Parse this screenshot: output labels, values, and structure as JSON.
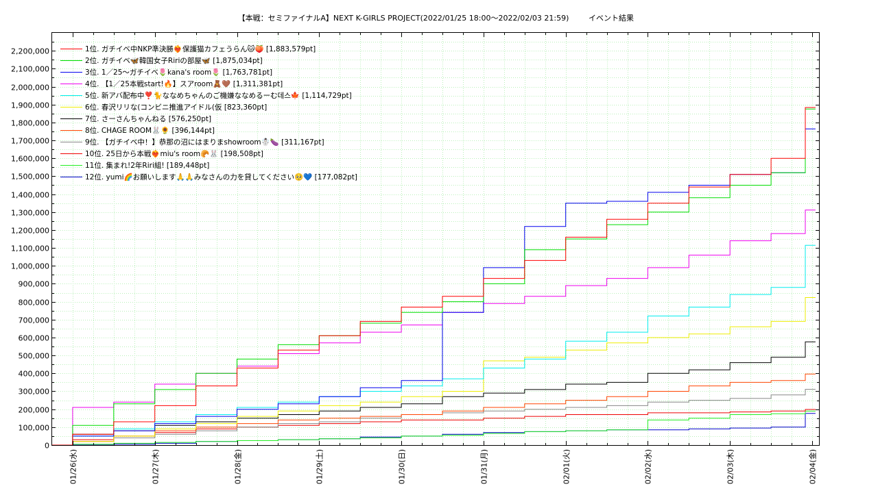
{
  "title": "【本戦：セミファイナルA】NEXT K-GIRLS PROJECT(2022/01/25 18:00～2022/02/03 21:59)",
  "subtitle": "イベント結果",
  "chart_data": {
    "type": "line",
    "step": true,
    "xlim": [
      "2022-01-25 18:00",
      "2022-02-04 02:00"
    ],
    "ylim": [
      0,
      2300000
    ],
    "grid": true,
    "legend_position": "top-left",
    "x_ticks": [
      "01/26(水)",
      "01/27(木)",
      "01/28(金)",
      "01/29(土)",
      "01/30(日)",
      "01/31(月)",
      "02/01(火)",
      "02/02(水)",
      "02/03(木)",
      "02/04(金)"
    ],
    "y_ticks": [
      "0",
      "100,000",
      "200,000",
      "300,000",
      "400,000",
      "500,000",
      "600,000",
      "700,000",
      "800,000",
      "900,000",
      "1,000,000",
      "1,100,000",
      "1,200,000",
      "1,300,000",
      "1,400,000",
      "1,500,000",
      "1,600,000",
      "1,700,000",
      "1,800,000",
      "1,900,000",
      "2,000,000",
      "2,100,000",
      "2,200,000"
    ],
    "series": [
      {
        "name": "1位. ガチイベ中NKP準決勝❤️‍🔥保護猫カフェうらん🐱🍑 [1,883,579pt]",
        "color": "#ff0000",
        "x": [
          "2022-01-25 18:00",
          "2022-01-26 00:00",
          "2022-01-26 12:00",
          "2022-01-27 00:00",
          "2022-01-27 12:00",
          "2022-01-28 00:00",
          "2022-01-28 12:00",
          "2022-01-29 00:00",
          "2022-01-29 12:00",
          "2022-01-30 00:00",
          "2022-01-30 12:00",
          "2022-01-31 00:00",
          "2022-01-31 12:00",
          "2022-02-01 00:00",
          "2022-02-01 12:00",
          "2022-02-02 00:00",
          "2022-02-02 12:00",
          "2022-02-03 00:00",
          "2022-02-03 12:00",
          "2022-02-03 21:59"
        ],
        "y": [
          0,
          60000,
          130000,
          220000,
          330000,
          430000,
          530000,
          610000,
          690000,
          770000,
          830000,
          930000,
          1030000,
          1160000,
          1260000,
          1350000,
          1440000,
          1510000,
          1600000,
          1883579
        ]
      },
      {
        "name": "2位. ガチイベ🦋韓国女子Ririの部屋🦋 [1,875,034pt]",
        "color": "#00dd00",
        "x": [
          "2022-01-25 18:00",
          "2022-01-26 00:00",
          "2022-01-26 12:00",
          "2022-01-27 00:00",
          "2022-01-27 12:00",
          "2022-01-28 00:00",
          "2022-01-28 12:00",
          "2022-01-29 00:00",
          "2022-01-29 12:00",
          "2022-01-30 00:00",
          "2022-01-30 12:00",
          "2022-01-31 00:00",
          "2022-01-31 12:00",
          "2022-02-01 00:00",
          "2022-02-01 12:00",
          "2022-02-02 00:00",
          "2022-02-02 12:00",
          "2022-02-03 00:00",
          "2022-02-03 12:00",
          "2022-02-03 21:59"
        ],
        "y": [
          0,
          110000,
          230000,
          310000,
          400000,
          480000,
          560000,
          610000,
          680000,
          740000,
          800000,
          900000,
          1090000,
          1150000,
          1230000,
          1300000,
          1380000,
          1450000,
          1520000,
          1875034
        ]
      },
      {
        "name": "3位. 1／25〜ガチイベ🌷kana's room🌷 [1,763,781pt]",
        "color": "#0000ee",
        "x": [
          "2022-01-25 18:00",
          "2022-01-26 00:00",
          "2022-01-26 12:00",
          "2022-01-27 00:00",
          "2022-01-27 12:00",
          "2022-01-28 00:00",
          "2022-01-28 12:00",
          "2022-01-29 00:00",
          "2022-01-29 12:00",
          "2022-01-30 00:00",
          "2022-01-30 12:00",
          "2022-01-31 00:00",
          "2022-01-31 12:00",
          "2022-02-01 00:00",
          "2022-02-01 12:00",
          "2022-02-02 00:00",
          "2022-02-02 12:00",
          "2022-02-03 00:00",
          "2022-02-03 12:00",
          "2022-02-03 21:59"
        ],
        "y": [
          0,
          50000,
          80000,
          120000,
          160000,
          200000,
          230000,
          270000,
          320000,
          360000,
          740000,
          990000,
          1220000,
          1350000,
          1360000,
          1410000,
          1450000,
          1510000,
          1520000,
          1763781
        ]
      },
      {
        "name": "4位. 【1／25本戦start!🔥】スアroom🧸🤎 [1,311,381pt]",
        "color": "#ee00ee",
        "x": [
          "2022-01-25 18:00",
          "2022-01-26 00:00",
          "2022-01-26 12:00",
          "2022-01-27 00:00",
          "2022-01-27 12:00",
          "2022-01-28 00:00",
          "2022-01-28 12:00",
          "2022-01-29 00:00",
          "2022-01-29 12:00",
          "2022-01-30 00:00",
          "2022-01-30 12:00",
          "2022-01-31 00:00",
          "2022-01-31 12:00",
          "2022-02-01 00:00",
          "2022-02-01 12:00",
          "2022-02-02 00:00",
          "2022-02-02 12:00",
          "2022-02-03 00:00",
          "2022-02-03 12:00",
          "2022-02-03 21:59"
        ],
        "y": [
          0,
          210000,
          240000,
          340000,
          400000,
          440000,
          510000,
          570000,
          630000,
          670000,
          740000,
          790000,
          830000,
          890000,
          930000,
          990000,
          1060000,
          1140000,
          1180000,
          1311381
        ]
      },
      {
        "name": "5位. 新アバ配布中❣️🐈ななめちゃんのご機嫌ななめるーむ데스🍁 [1,114,729pt]",
        "color": "#00eeee",
        "x": [
          "2022-01-25 18:00",
          "2022-01-26 00:00",
          "2022-01-26 12:00",
          "2022-01-27 00:00",
          "2022-01-27 12:00",
          "2022-01-28 00:00",
          "2022-01-28 12:00",
          "2022-01-29 00:00",
          "2022-01-29 12:00",
          "2022-01-30 00:00",
          "2022-01-30 12:00",
          "2022-01-31 00:00",
          "2022-01-31 12:00",
          "2022-02-01 00:00",
          "2022-02-01 12:00",
          "2022-02-02 00:00",
          "2022-02-02 12:00",
          "2022-02-03 00:00",
          "2022-02-03 12:00",
          "2022-02-03 21:59"
        ],
        "y": [
          0,
          50000,
          90000,
          130000,
          170000,
          210000,
          240000,
          270000,
          300000,
          330000,
          370000,
          430000,
          480000,
          580000,
          630000,
          720000,
          770000,
          840000,
          880000,
          1114729
        ]
      },
      {
        "name": "6位. 春沢リリな(コンビニ推進アイドル(仮 [823,360pt]",
        "color": "#eeee00",
        "x": [
          "2022-01-25 18:00",
          "2022-01-26 00:00",
          "2022-01-26 12:00",
          "2022-01-27 00:00",
          "2022-01-27 12:00",
          "2022-01-28 00:00",
          "2022-01-28 12:00",
          "2022-01-29 00:00",
          "2022-01-29 12:00",
          "2022-01-30 00:00",
          "2022-01-30 12:00",
          "2022-01-31 00:00",
          "2022-01-31 12:00",
          "2022-02-01 00:00",
          "2022-02-01 12:00",
          "2022-02-02 00:00",
          "2022-02-02 12:00",
          "2022-02-03 00:00",
          "2022-02-03 12:00",
          "2022-02-03 21:59"
        ],
        "y": [
          0,
          20000,
          50000,
          90000,
          120000,
          160000,
          190000,
          220000,
          240000,
          270000,
          300000,
          470000,
          490000,
          530000,
          570000,
          600000,
          620000,
          660000,
          690000,
          823360
        ]
      },
      {
        "name": "7位. さーさんちゃんねる [576,250pt]",
        "color": "#000000",
        "x": [
          "2022-01-25 18:00",
          "2022-01-26 00:00",
          "2022-01-26 12:00",
          "2022-01-27 00:00",
          "2022-01-27 12:00",
          "2022-01-28 00:00",
          "2022-01-28 12:00",
          "2022-01-29 00:00",
          "2022-01-29 12:00",
          "2022-01-30 00:00",
          "2022-01-30 12:00",
          "2022-01-31 00:00",
          "2022-01-31 12:00",
          "2022-02-01 00:00",
          "2022-02-01 12:00",
          "2022-02-02 00:00",
          "2022-02-02 12:00",
          "2022-02-03 00:00",
          "2022-02-03 12:00",
          "2022-02-03 21:59"
        ],
        "y": [
          0,
          60000,
          80000,
          110000,
          130000,
          150000,
          170000,
          190000,
          210000,
          230000,
          270000,
          290000,
          310000,
          340000,
          350000,
          400000,
          420000,
          460000,
          490000,
          576250
        ]
      },
      {
        "name": "8位. CHAGE ROOM🐰🌻 [396,144pt]",
        "color": "#ff4400",
        "x": [
          "2022-01-25 18:00",
          "2022-01-26 00:00",
          "2022-01-26 12:00",
          "2022-01-27 00:00",
          "2022-01-27 12:00",
          "2022-01-28 00:00",
          "2022-01-28 12:00",
          "2022-01-29 00:00",
          "2022-01-29 12:00",
          "2022-01-30 00:00",
          "2022-01-30 12:00",
          "2022-01-31 00:00",
          "2022-01-31 12:00",
          "2022-02-01 00:00",
          "2022-02-01 12:00",
          "2022-02-02 00:00",
          "2022-02-02 12:00",
          "2022-02-03 00:00",
          "2022-02-03 12:00",
          "2022-02-03 21:59"
        ],
        "y": [
          0,
          20000,
          50000,
          80000,
          100000,
          120000,
          140000,
          150000,
          160000,
          170000,
          190000,
          210000,
          230000,
          250000,
          270000,
          300000,
          330000,
          350000,
          360000,
          396144
        ]
      },
      {
        "name": "9位. 【ガチイベ中！】恭那の沼にはまりまshowroom☃️🍆 [311,167pt]",
        "color": "#888888",
        "x": [
          "2022-01-25 18:00",
          "2022-01-26 00:00",
          "2022-01-26 12:00",
          "2022-01-27 00:00",
          "2022-01-27 12:00",
          "2022-01-28 00:00",
          "2022-01-28 12:00",
          "2022-01-29 00:00",
          "2022-01-29 12:00",
          "2022-01-30 00:00",
          "2022-01-30 12:00",
          "2022-01-31 00:00",
          "2022-01-31 12:00",
          "2022-02-01 00:00",
          "2022-02-01 12:00",
          "2022-02-02 00:00",
          "2022-02-02 12:00",
          "2022-02-03 00:00",
          "2022-02-03 12:00",
          "2022-02-03 21:59"
        ],
        "y": [
          0,
          20000,
          40000,
          60000,
          80000,
          100000,
          120000,
          130000,
          150000,
          170000,
          180000,
          190000,
          200000,
          210000,
          220000,
          240000,
          250000,
          260000,
          280000,
          311167
        ]
      },
      {
        "name": "10位. 25日から本戦❤️‍🔥miu's room🥐🐰 [198,508pt]",
        "color": "#ee0000",
        "x": [
          "2022-01-25 18:00",
          "2022-01-26 00:00",
          "2022-01-26 12:00",
          "2022-01-27 00:00",
          "2022-01-27 12:00",
          "2022-01-28 00:00",
          "2022-01-28 12:00",
          "2022-01-29 00:00",
          "2022-01-29 12:00",
          "2022-01-30 00:00",
          "2022-01-30 12:00",
          "2022-01-31 00:00",
          "2022-01-31 12:00",
          "2022-02-01 00:00",
          "2022-02-01 12:00",
          "2022-02-02 00:00",
          "2022-02-02 12:00",
          "2022-02-03 00:00",
          "2022-02-03 12:00",
          "2022-02-03 21:59"
        ],
        "y": [
          0,
          30000,
          50000,
          70000,
          90000,
          100000,
          110000,
          120000,
          130000,
          140000,
          140000,
          150000,
          160000,
          170000,
          170000,
          180000,
          180000,
          185000,
          190000,
          198508
        ]
      },
      {
        "name": "11位. 集まれ!2年Riri組! [189,448pt]",
        "color": "#22ee22",
        "x": [
          "2022-01-25 18:00",
          "2022-01-26 00:00",
          "2022-01-26 12:00",
          "2022-01-27 00:00",
          "2022-01-27 12:00",
          "2022-01-28 00:00",
          "2022-01-28 12:00",
          "2022-01-29 00:00",
          "2022-01-29 12:00",
          "2022-01-30 00:00",
          "2022-01-30 12:00",
          "2022-01-31 00:00",
          "2022-01-31 12:00",
          "2022-02-01 00:00",
          "2022-02-01 12:00",
          "2022-02-02 00:00",
          "2022-02-02 12:00",
          "2022-02-03 00:00",
          "2022-02-03 12:00",
          "2022-02-03 21:59"
        ],
        "y": [
          0,
          5000,
          10000,
          15000,
          20000,
          25000,
          30000,
          35000,
          40000,
          50000,
          55000,
          65000,
          75000,
          80000,
          85000,
          140000,
          150000,
          170000,
          175000,
          189448
        ]
      },
      {
        "name": "12位. yumi🌈お願いします🙏🙏みなさんの力を貸してください🥺💙 [177,082pt]",
        "color": "#0000cc",
        "x": [
          "2022-01-25 18:00",
          "2022-01-26 00:00",
          "2022-01-26 12:00",
          "2022-01-27 00:00",
          "2022-01-27 12:00",
          "2022-01-28 00:00",
          "2022-01-28 12:00",
          "2022-01-29 00:00",
          "2022-01-29 12:00",
          "2022-01-30 00:00",
          "2022-01-30 12:00",
          "2022-01-31 00:00",
          "2022-01-31 12:00",
          "2022-02-01 00:00",
          "2022-02-01 12:00",
          "2022-02-02 00:00",
          "2022-02-02 12:00",
          "2022-02-03 00:00",
          "2022-02-03 12:00",
          "2022-02-03 21:59"
        ],
        "y": [
          0,
          3000,
          5000,
          10000,
          20000,
          25000,
          30000,
          35000,
          45000,
          50000,
          60000,
          70000,
          75000,
          80000,
          85000,
          85000,
          90000,
          95000,
          100000,
          177082
        ]
      }
    ]
  }
}
